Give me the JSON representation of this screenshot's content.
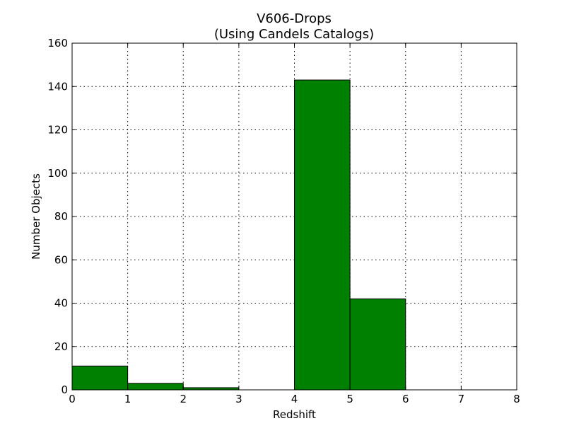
{
  "chart_data": {
    "type": "bar",
    "title_lines": [
      "V606-Drops",
      "(Using Candels Catalogs)"
    ],
    "xlabel": "Redshift",
    "ylabel": "Number Objects",
    "xlim": [
      0,
      8
    ],
    "ylim": [
      0,
      160
    ],
    "xticks": [
      0,
      1,
      2,
      3,
      4,
      5,
      6,
      7,
      8
    ],
    "yticks": [
      0,
      20,
      40,
      60,
      80,
      100,
      120,
      140,
      160
    ],
    "grid": true,
    "bar_color": "#008000",
    "bins": [
      {
        "x0": 0,
        "x1": 1,
        "value": 11
      },
      {
        "x0": 1,
        "x1": 2,
        "value": 3
      },
      {
        "x0": 2,
        "x1": 3,
        "value": 1
      },
      {
        "x0": 3,
        "x1": 4,
        "value": 0
      },
      {
        "x0": 4,
        "x1": 5,
        "value": 143
      },
      {
        "x0": 5,
        "x1": 6,
        "value": 42
      },
      {
        "x0": 6,
        "x1": 7,
        "value": 0
      },
      {
        "x0": 7,
        "x1": 8,
        "value": 0
      }
    ]
  }
}
